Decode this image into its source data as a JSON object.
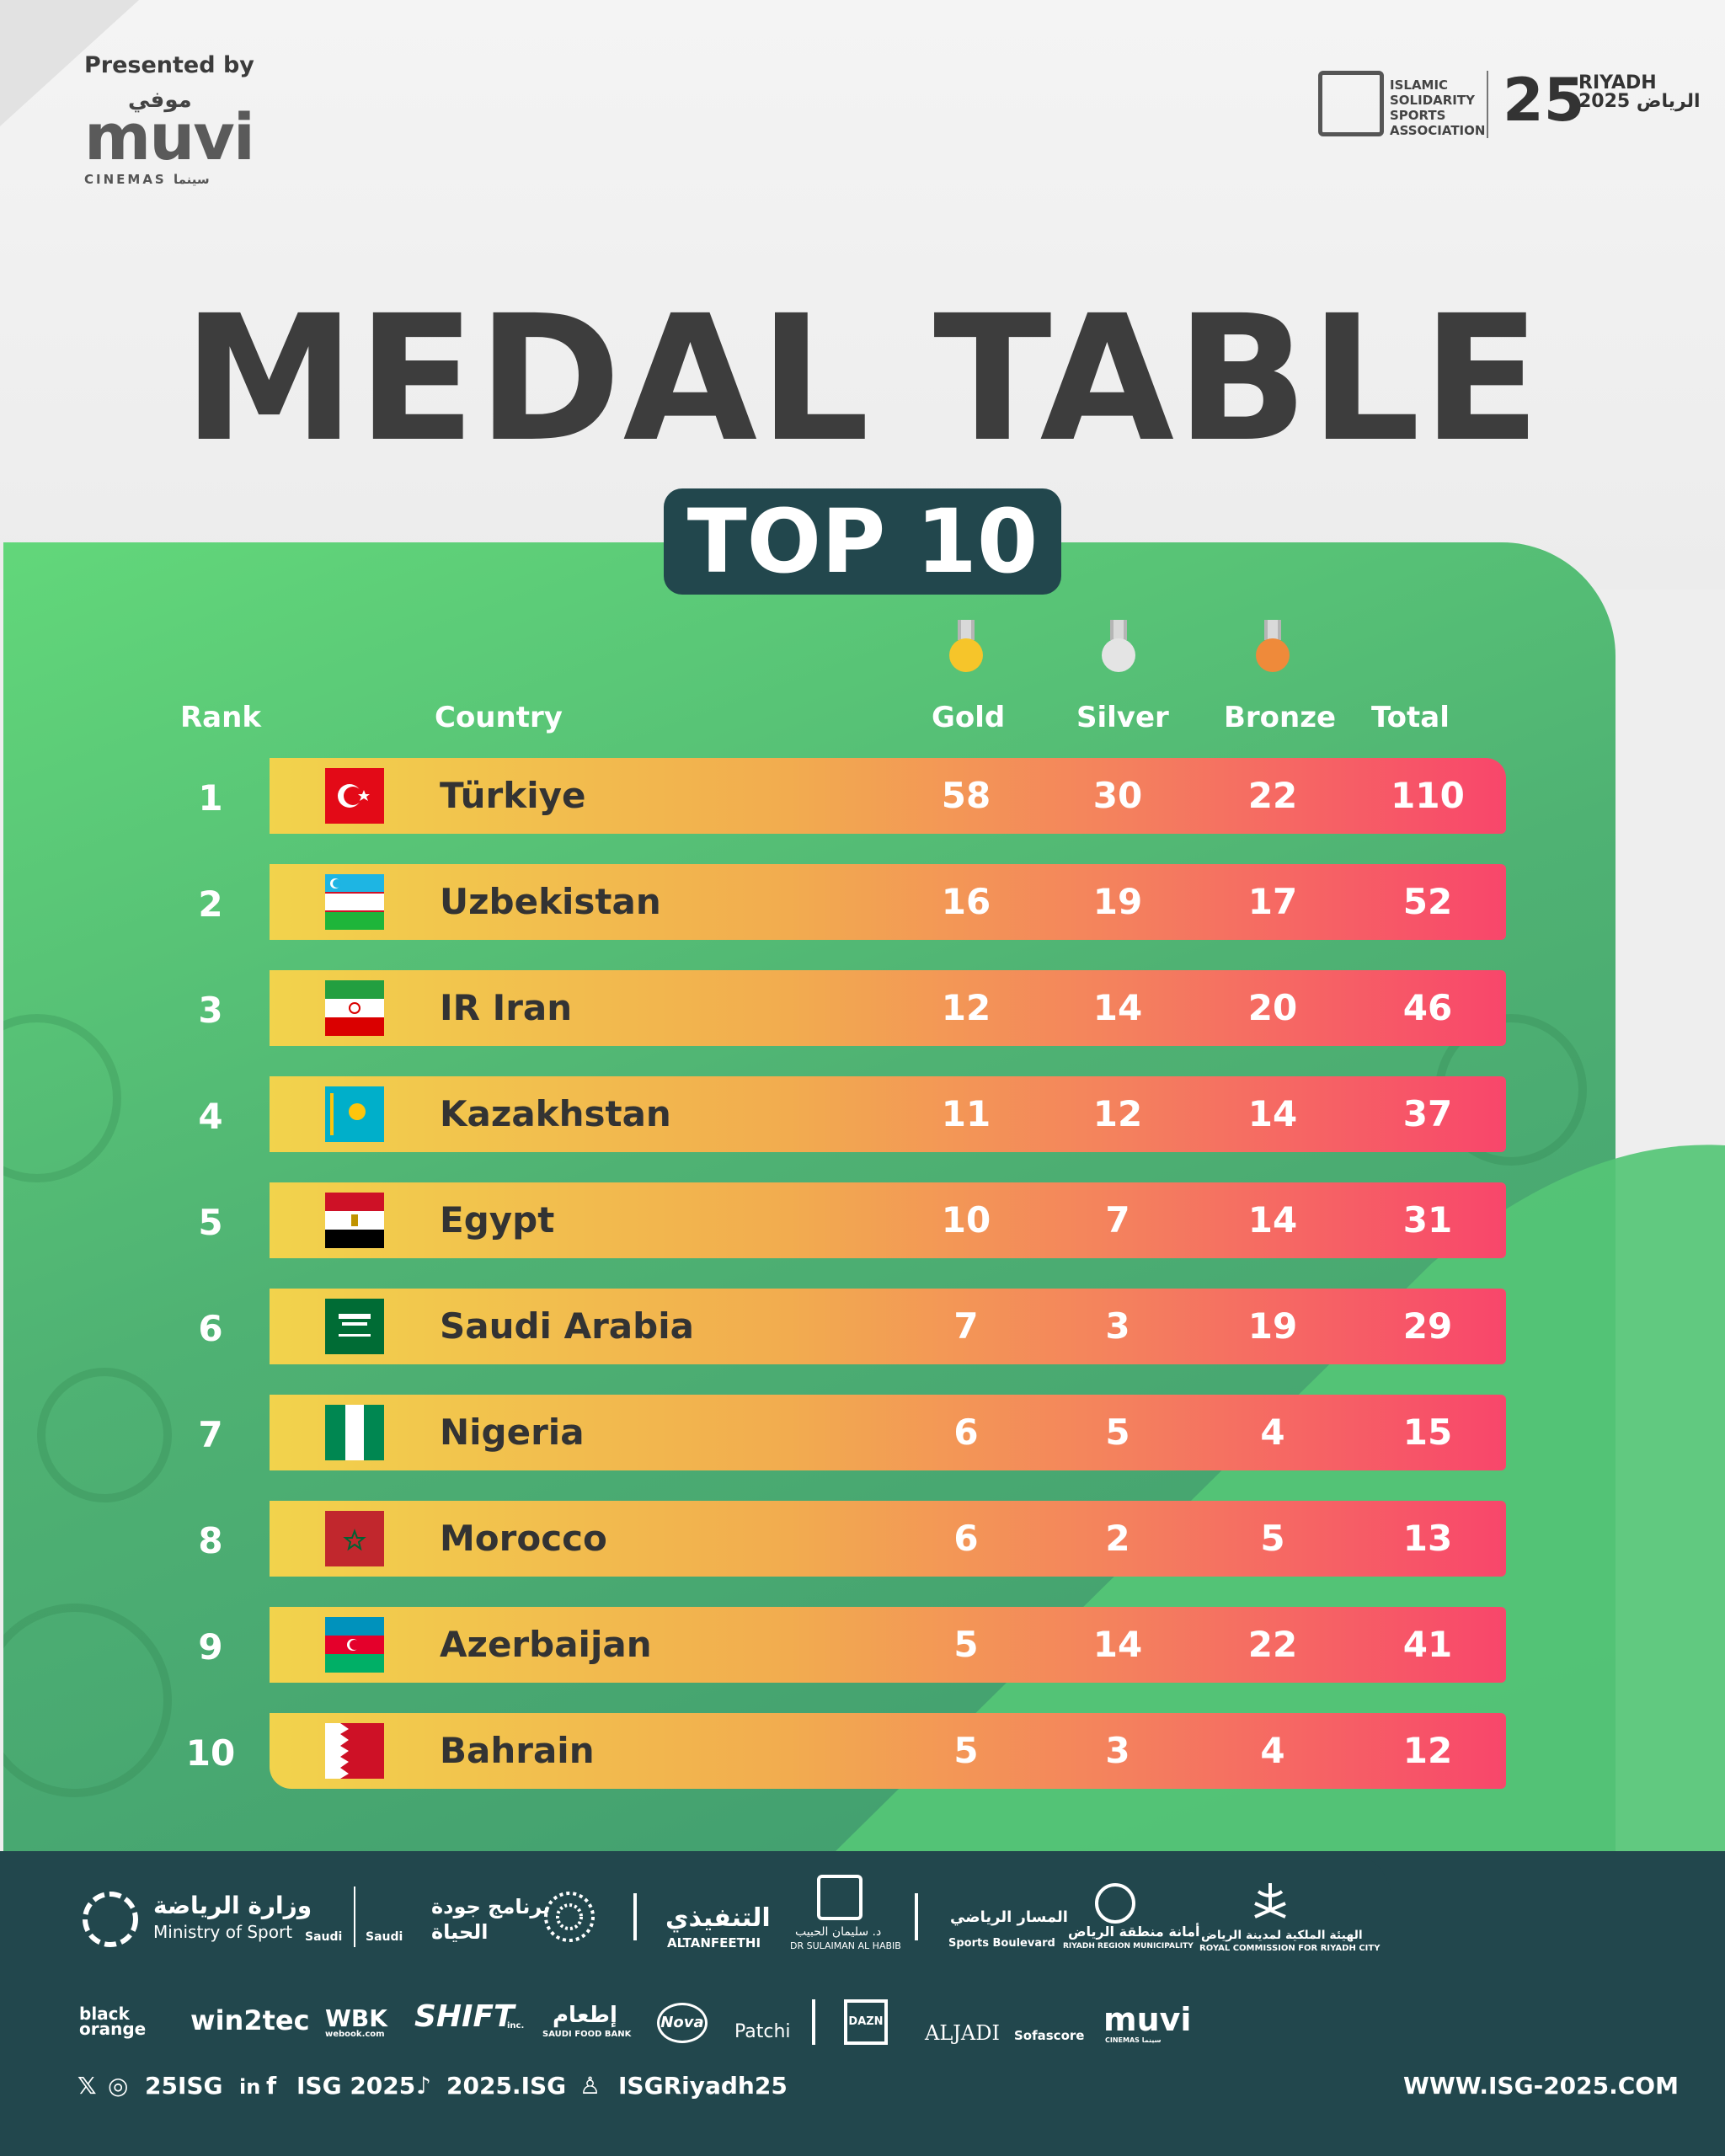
{
  "header": {
    "presented_by": "Presented by",
    "muvi_arabic": "موفي",
    "muvi_logo": "muvi",
    "muvi_sub": "CINEMAS سينما",
    "isa_lines": [
      "ISLAMIC",
      "SOLIDARITY",
      "SPORTS",
      "ASSOCIATION"
    ],
    "riyadh_num": "25",
    "riyadh_lines": [
      "RIYADH",
      "2025 الرياض"
    ]
  },
  "title": "MEDAL TABLE",
  "subtitle": "TOP 10",
  "columns": {
    "rank": "Rank",
    "country": "Country",
    "gold": "Gold",
    "silver": "Silver",
    "bronze": "Bronze",
    "total": "Total"
  },
  "medal_colors": {
    "gold": "#f6c52a",
    "silver": "#e4e4e4",
    "bronze": "#ef8a3a"
  },
  "rows": [
    {
      "rank": "1",
      "country": "Türkiye",
      "gold": "58",
      "silver": "30",
      "bronze": "22",
      "total": "110",
      "flag": "turkey-flag-icon"
    },
    {
      "rank": "2",
      "country": "Uzbekistan",
      "gold": "16",
      "silver": "19",
      "bronze": "17",
      "total": "52",
      "flag": "uzbekistan-flag-icon"
    },
    {
      "rank": "3",
      "country": "IR Iran",
      "gold": "12",
      "silver": "14",
      "bronze": "20",
      "total": "46",
      "flag": "iran-flag-icon"
    },
    {
      "rank": "4",
      "country": "Kazakhstan",
      "gold": "11",
      "silver": "12",
      "bronze": "14",
      "total": "37",
      "flag": "kazakhstan-flag-icon"
    },
    {
      "rank": "5",
      "country": "Egypt",
      "gold": "10",
      "silver": "7",
      "bronze": "14",
      "total": "31",
      "flag": "egypt-flag-icon"
    },
    {
      "rank": "6",
      "country": "Saudi Arabia",
      "gold": "7",
      "silver": "3",
      "bronze": "19",
      "total": "29",
      "flag": "saudi-arabia-flag-icon"
    },
    {
      "rank": "7",
      "country": "Nigeria",
      "gold": "6",
      "silver": "5",
      "bronze": "4",
      "total": "15",
      "flag": "nigeria-flag-icon"
    },
    {
      "rank": "8",
      "country": "Morocco",
      "gold": "6",
      "silver": "2",
      "bronze": "5",
      "total": "13",
      "flag": "morocco-flag-icon"
    },
    {
      "rank": "9",
      "country": "Azerbaijan",
      "gold": "5",
      "silver": "14",
      "bronze": "22",
      "total": "41",
      "flag": "azerbaijan-flag-icon"
    },
    {
      "rank": "10",
      "country": "Bahrain",
      "gold": "5",
      "silver": "3",
      "bronze": "4",
      "total": "12",
      "flag": "bahrain-flag-icon"
    }
  ],
  "footer": {
    "ministry_ar": "وزارة الرياضة",
    "ministry_en": "Ministry of Sport",
    "saudi_1": "Saudi",
    "saudi_2": "Saudi",
    "qol_ar_1": "برنامج جودة",
    "qol_ar_2": "الحياة",
    "altanfeethi_ar": "التنفيذي",
    "altanfeethi_en": "ALTANFEETHI",
    "habib_ar": "د. سليمان الحبيب",
    "habib_en": "DR SULAIMAN AL HABIB",
    "boulevard_ar": "المسار الرياضي",
    "boulevard_en": "Sports Boulevard",
    "municipality_ar": "أمانة منطقة الرياض",
    "municipality_en": "RIYADH REGION MUNICIPALITY",
    "rcrc_ar": "الهيئة الملكية لمدينة الرياض",
    "rcrc_en": "ROYAL COMMISSION FOR RIYADH CITY",
    "sponsors": [
      "black orange",
      "win2tec",
      "WBK",
      "SHIFT",
      "SAUDI FOOD BANK",
      "Nova",
      "Patchi",
      "DAZN",
      "ALJADI",
      "Sofascore",
      "muvi"
    ],
    "webook_sub": "webook.com",
    "shift_sub": "inc.",
    "food_bank_ar": "إطعام",
    "muvi_sub": "CINEMAS سينما",
    "social_x_ig": "25ISG",
    "social_li_fb": "ISG 2025",
    "social_tiktok": "2025.ISG",
    "social_snap": "ISGRiyadh25",
    "website": "WWW.ISG-2025.COM"
  }
}
